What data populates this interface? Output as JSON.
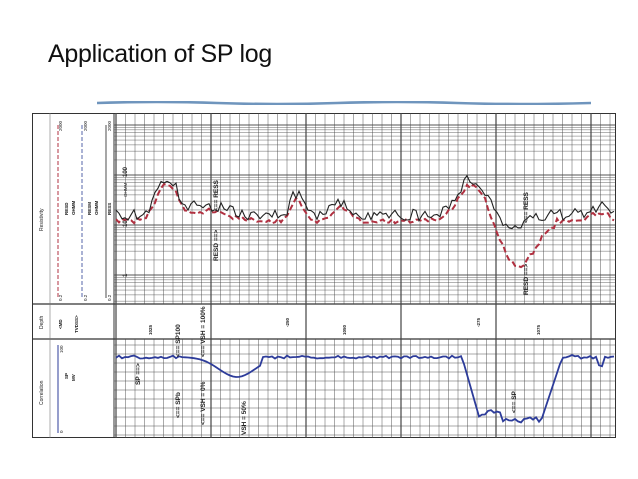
{
  "slide": {
    "title": "Application of SP log"
  },
  "header": {
    "resistivity": {
      "track_name": "Resistivity",
      "curves": [
        {
          "mnemonic": "RESD",
          "unit": "OHMM",
          "min": "0.2",
          "max": "2000",
          "color": "#b03040"
        },
        {
          "mnemonic": "RESM",
          "unit": "OHMM",
          "min": "0.2",
          "max": "2000",
          "color": "#5566aa"
        },
        {
          "mnemonic": "RESS",
          "unit": "",
          "min": "0.2",
          "max": "2000",
          "color": "#222222"
        }
      ]
    },
    "depth": {
      "track_name": "Depth",
      "lines": [
        "<MD",
        "TVDSS>"
      ]
    },
    "correlation": {
      "track_name": "Correlation",
      "curve": "SP",
      "unit": "MV",
      "min": "0",
      "max": "100"
    }
  },
  "scale_labels": {
    "decade_100": "100",
    "decade_10": "10",
    "decade_1": "1",
    "unit_ohmm": "OHMM"
  },
  "depth_labels": [
    "1025",
    "-250",
    "1050",
    "-275",
    "1075"
  ],
  "annotations": {
    "ress_1": "<== RESS",
    "resd_1": "RESD ==>",
    "ress_2": "<== RESS",
    "resd_2": "RESD ==>",
    "sp_arrow": "SP ==>",
    "sp100": "<== SP100",
    "spb": "<== SPb",
    "vsh_0": "<== VSH = 0%",
    "vsh_100": "<== VSH = 100%",
    "vsh_50": "VSH = 50%",
    "sp_low": "<== SP"
  },
  "colors": {
    "resd": "#b03040",
    "ress": "#222222",
    "sp": "#2d3c9a",
    "grid": "#444444",
    "rule": "#6f95bd"
  }
}
